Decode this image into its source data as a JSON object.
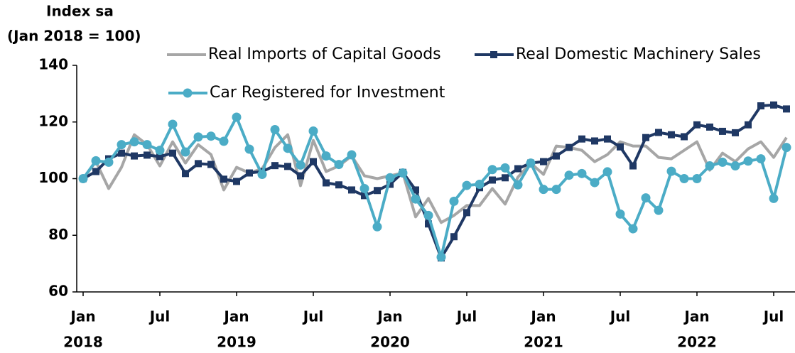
{
  "chart_data": {
    "type": "line",
    "y_label_line1": "Index sa",
    "y_label_line2": "(Jan 2018 = 100)",
    "categories": [
      "Jan",
      null,
      null,
      null,
      null,
      null,
      "Jul",
      null,
      null,
      null,
      null,
      null,
      "Jan",
      null,
      null,
      null,
      null,
      null,
      "Jul",
      null,
      null,
      null,
      null,
      null,
      "Jan",
      null,
      null,
      null,
      null,
      null,
      "Jul",
      null,
      null,
      null,
      null,
      null,
      "Jan",
      null,
      null,
      null,
      null,
      null,
      "Jul",
      null,
      null,
      null,
      null,
      null,
      "Jan",
      null,
      null,
      null,
      null,
      null,
      "Jul",
      null
    ],
    "years": [
      "2018",
      "2019",
      "2020",
      "2021",
      "2022"
    ],
    "ylim": [
      60,
      140
    ],
    "yticks": [
      60,
      80,
      100,
      120,
      140
    ],
    "series": [
      {
        "name": "Real Imports of Capital Goods",
        "color": "#a6a6a6",
        "marker": "none",
        "values": [
          100,
          106,
          96.5,
          104,
          115.5,
          112,
          104.5,
          113,
          105.5,
          112,
          108.5,
          96,
          104,
          102,
          103.5,
          111,
          115.5,
          97.5,
          113.5,
          102.5,
          104.5,
          108,
          101,
          100,
          101,
          102,
          86.5,
          93,
          84.5,
          87,
          90.5,
          90.5,
          96.5,
          91,
          100.5,
          105.5,
          101.5,
          111.5,
          111,
          110,
          106,
          108.5,
          113,
          111.5,
          111.5,
          107.5,
          107,
          110,
          113,
          103,
          109,
          106,
          110.5,
          113,
          107.5,
          114.5
        ]
      },
      {
        "name": "Real Domestic Machinery Sales",
        "color": "#1f3864",
        "marker": "square",
        "values": [
          100,
          102.5,
          107,
          109,
          108,
          108.3,
          107.8,
          109,
          101.8,
          105.3,
          105,
          99.8,
          99,
          102,
          102.5,
          104.6,
          104.3,
          101,
          106,
          98.5,
          97.8,
          96,
          94,
          95.8,
          98,
          102.2,
          96,
          84,
          72,
          79.5,
          88,
          96.8,
          99.5,
          100.3,
          103.5,
          105.5,
          106,
          108,
          111,
          114,
          113.3,
          114,
          111.2,
          104.5,
          114.5,
          116.3,
          115.5,
          114.8,
          119,
          118.2,
          116.7,
          116.2,
          119,
          125.7,
          126,
          124.6
        ]
      },
      {
        "name": "Car Registered for Investment",
        "color": "#4bacc6",
        "marker": "circle",
        "values": [
          100,
          106.3,
          105.8,
          112,
          113,
          112,
          110,
          119.2,
          109.4,
          114.7,
          115,
          113.2,
          121.7,
          110.4,
          101.5,
          117.3,
          110.7,
          104.8,
          116.8,
          108,
          105,
          108.4,
          96.5,
          83,
          100.3,
          102,
          92.8,
          87,
          72.3,
          92,
          97.6,
          98,
          103.2,
          103.8,
          97.8,
          105.5,
          96.2,
          96.2,
          101.2,
          101.8,
          98.6,
          102.4,
          87.5,
          82.3,
          93.2,
          88.8,
          102.6,
          100,
          100,
          104.5,
          105.8,
          104.5,
          106.2,
          107,
          93,
          111
        ]
      }
    ]
  }
}
